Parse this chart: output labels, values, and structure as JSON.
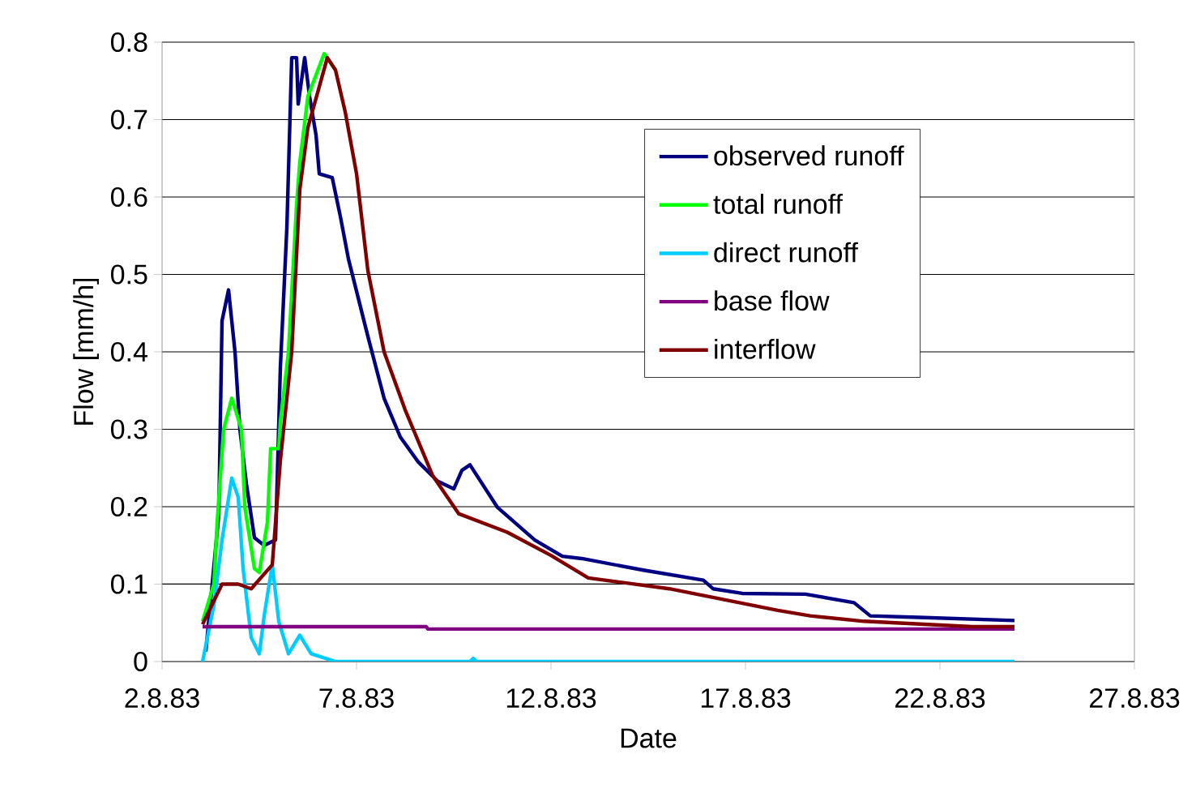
{
  "chart_data": {
    "type": "line",
    "xlabel": "Date",
    "ylabel": "Flow [mm/h]",
    "xlim": [
      "1983-08-02",
      "1983-08-27"
    ],
    "xticks": [
      {
        "value": "1983-08-02",
        "label": "2.8.83"
      },
      {
        "value": "1983-08-07",
        "label": "7.8.83"
      },
      {
        "value": "1983-08-12",
        "label": "12.8.83"
      },
      {
        "value": "1983-08-17",
        "label": "17.8.83"
      },
      {
        "value": "1983-08-22",
        "label": "22.8.83"
      },
      {
        "value": "1983-08-27",
        "label": "27.8.83"
      }
    ],
    "ylim": [
      0,
      0.8
    ],
    "yticks": [
      {
        "value": 0,
        "label": "0"
      },
      {
        "value": 0.1,
        "label": "0.1"
      },
      {
        "value": 0.2,
        "label": "0.2"
      },
      {
        "value": 0.3,
        "label": "0.3"
      },
      {
        "value": 0.4,
        "label": "0.4"
      },
      {
        "value": 0.5,
        "label": "0.5"
      },
      {
        "value": 0.6,
        "label": "0.6"
      },
      {
        "value": 0.7,
        "label": "0.7"
      },
      {
        "value": 0.8,
        "label": "0.8"
      }
    ],
    "grid": "y",
    "legend": "top right",
    "series": [
      {
        "name": "observed runoff",
        "color": "#000080",
        "x": [
          "1983-08-03T03:00",
          "1983-08-03T11:00",
          "1983-08-03T13:00",
          "1983-08-03T17:00",
          "1983-08-03T21:00",
          "1983-08-04T00:00",
          "1983-08-04T04:00",
          "1983-08-04T09:00",
          "1983-08-04T15:00",
          "1983-08-04T22:00",
          "1983-08-05T01:00",
          "1983-08-05T05:00",
          "1983-08-05T08:00",
          "1983-08-05T11:00",
          "1983-08-05T12:00",
          "1983-08-05T16:00",
          "1983-08-05T19:00",
          "1983-08-05T23:00",
          "1983-08-06T01:00",
          "1983-08-06T09:00",
          "1983-08-06T14:00",
          "1983-08-06T19:00",
          "1983-08-07T07:00",
          "1983-08-07T17:00",
          "1983-08-08T03:00",
          "1983-08-08T14:00",
          "1983-08-09T02:00",
          "1983-08-09T12:00",
          "1983-08-09T17:00",
          "1983-08-09T22:00",
          "1983-08-10T15:00",
          "1983-08-11T14:00",
          "1983-08-12T07:00",
          "1983-08-12T19:00",
          "1983-08-14T09:00",
          "1983-08-15T22:00",
          "1983-08-16T04:00",
          "1983-08-16T22:00",
          "1983-08-18T13:00",
          "1983-08-19T19:00",
          "1983-08-20T05:00",
          "1983-08-21T11:00",
          "1983-08-23T22:00"
        ],
        "values": [
          0.013,
          0.19,
          0.44,
          0.48,
          0.4,
          0.3,
          0.23,
          0.16,
          0.15,
          0.157,
          0.38,
          0.56,
          0.78,
          0.78,
          0.72,
          0.78,
          0.73,
          0.68,
          0.63,
          0.625,
          0.575,
          0.52,
          0.42,
          0.34,
          0.29,
          0.258,
          0.233,
          0.223,
          0.247,
          0.254,
          0.199,
          0.157,
          0.136,
          0.133,
          0.118,
          0.105,
          0.094,
          0.088,
          0.087,
          0.076,
          0.059,
          0.057,
          0.053
        ]
      },
      {
        "name": "total runoff",
        "color": "#00ff00",
        "x": [
          "1983-08-03T01:00",
          "1983-08-03T08:00",
          "1983-08-03T10:00",
          "1983-08-03T14:00",
          "1983-08-03T19:00",
          "1983-08-04T01:00",
          "1983-08-04T03:00",
          "1983-08-04T09:00",
          "1983-08-04T12:00",
          "1983-08-04T17:00",
          "1983-08-04T19:00",
          "1983-08-05T00:00",
          "1983-08-05T01:00",
          "1983-08-05T06:00",
          "1983-08-05T11:00",
          "1983-08-05T13:00",
          "1983-08-05T18:00",
          "1983-08-06T04:00",
          "1983-08-06T11:00"
        ],
        "values": [
          0.052,
          0.1,
          0.18,
          0.3,
          0.34,
          0.3,
          0.2,
          0.12,
          0.115,
          0.18,
          0.275,
          0.275,
          0.31,
          0.4,
          0.59,
          0.645,
          0.73,
          0.785,
          0.764
        ]
      },
      {
        "name": "direct runoff",
        "color": "#00ccff",
        "x": [
          "1983-08-03T01:00",
          "1983-08-03T08:00",
          "1983-08-03T13:00",
          "1983-08-03T19:00",
          "1983-08-03T23:00",
          "1983-08-04T02:00",
          "1983-08-04T07:00",
          "1983-08-04T12:00",
          "1983-08-04T15:00",
          "1983-08-04T20:00",
          "1983-08-05T00:00",
          "1983-08-05T06:00",
          "1983-08-05T13:00",
          "1983-08-05T20:00",
          "1983-08-06T11:00",
          "1983-08-09T22:00",
          "1983-08-10T00:00",
          "1983-08-10T02:00",
          "1983-08-23T22:00"
        ],
        "values": [
          0,
          0.073,
          0.157,
          0.237,
          0.212,
          0.12,
          0.031,
          0.01,
          0.059,
          0.125,
          0.052,
          0.01,
          0.034,
          0.01,
          0,
          0,
          0.004,
          0,
          0
        ]
      },
      {
        "name": "base flow",
        "color": "#800080",
        "x": [
          "1983-08-03T01:00",
          "1983-08-08T19:00",
          "1983-08-08T20:00",
          "1983-08-23T22:00"
        ],
        "values": [
          0.045,
          0.045,
          0.042,
          0.042
        ]
      },
      {
        "name": "interflow",
        "color": "#800000",
        "x": [
          "1983-08-03T01:00",
          "1983-08-03T13:00",
          "1983-08-03T23:00",
          "1983-08-04T07:00",
          "1983-08-04T20:00",
          "1983-08-05T01:00",
          "1983-08-05T08:00",
          "1983-08-05T13:00",
          "1983-08-05T18:00",
          "1983-08-06T06:00",
          "1983-08-06T11:00",
          "1983-08-06T17:00",
          "1983-08-07T00:00",
          "1983-08-07T07:00",
          "1983-08-07T17:00",
          "1983-08-08T06:00",
          "1983-08-08T16:00",
          "1983-08-08T23:00",
          "1983-08-09T15:00",
          "1983-08-10T21:00",
          "1983-08-12T00:00",
          "1983-08-12T23:00",
          "1983-08-15T01:00",
          "1983-08-17T20:00",
          "1983-08-18T16:00",
          "1983-08-20T01:00",
          "1983-08-22T20:00",
          "1983-08-23T22:00"
        ],
        "values": [
          0.048,
          0.1,
          0.1,
          0.094,
          0.125,
          0.26,
          0.4,
          0.61,
          0.69,
          0.78,
          0.764,
          0.71,
          0.63,
          0.505,
          0.4,
          0.325,
          0.275,
          0.24,
          0.191,
          0.167,
          0.137,
          0.108,
          0.094,
          0.066,
          0.059,
          0.052,
          0.045,
          0.045
        ]
      }
    ]
  }
}
